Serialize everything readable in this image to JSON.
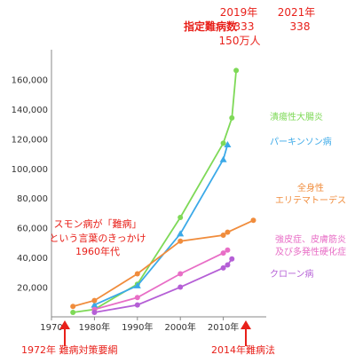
{
  "chart_data": {
    "type": "line",
    "x_ticks": [
      "1970",
      "1980年",
      "1990年",
      "2000年",
      "2010年"
    ],
    "y_ticks": [
      "20,000",
      "40,000",
      "60,000",
      "80,000",
      "100,000",
      "120,000",
      "140,000",
      "160,000"
    ],
    "xlim": [
      1970,
      2020
    ],
    "ylim": [
      0,
      180000
    ],
    "grid": false,
    "series": [
      {
        "name": "潰瘍性大腸炎",
        "color": "#7ed957",
        "marker": "circle",
        "x": [
          1975,
          1980,
          1990,
          2000,
          2010,
          2012,
          2013
        ],
        "y": [
          3000,
          5000,
          22000,
          67000,
          117000,
          134000,
          166000
        ]
      },
      {
        "name": "パーキンソン病",
        "color": "#3ba9e8",
        "marker": "triangle",
        "x": [
          1980,
          1990,
          2000,
          2010,
          2011
        ],
        "y": [
          8000,
          21000,
          56000,
          106000,
          116000
        ]
      },
      {
        "name": "全身性\nエリテマトーデス",
        "color": "#f08c3c",
        "marker": "circle",
        "x": [
          1975,
          1980,
          1990,
          2000,
          2010,
          2011,
          2017
        ],
        "y": [
          7000,
          11000,
          29000,
          51000,
          55000,
          57000,
          65000
        ]
      },
      {
        "name": "強皮症、皮膚筋炎\n及び多発性硬化症",
        "color": "#e86ec6",
        "marker": "circle",
        "x": [
          1980,
          1990,
          2000,
          2010,
          2011
        ],
        "y": [
          5000,
          13000,
          29000,
          43000,
          45000
        ]
      },
      {
        "name": "クローン病",
        "color": "#b55fd6",
        "marker": "circle",
        "x": [
          1980,
          1990,
          2000,
          2010,
          2011,
          2012
        ],
        "y": [
          3000,
          8000,
          20000,
          33000,
          35000,
          39000
        ]
      }
    ]
  },
  "header": {
    "label": "指定難病数",
    "year_2019": "2019年",
    "year_2021": "2021年",
    "count_2019": "333",
    "count_2021": "338",
    "patients": "150万人"
  },
  "annotations": {
    "smon_1": "スモン病が「難病」",
    "smon_2": "という言葉のきっかけ",
    "smon_3": "1960年代",
    "bottom_1972": "1972年 難病対策要綱",
    "bottom_2014": "2014年難病法"
  },
  "colors": {
    "annotation_red": "#e8201a",
    "axis": "#888888"
  }
}
